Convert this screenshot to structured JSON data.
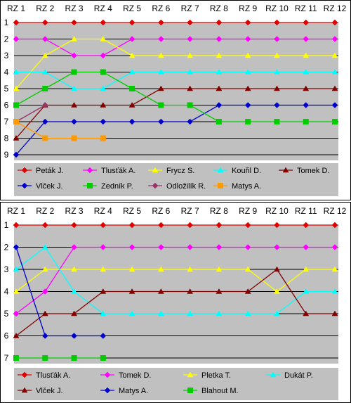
{
  "charts": [
    {
      "type": "line",
      "x": [
        "RZ 1",
        "RZ 2",
        "RZ 3",
        "RZ 4",
        "RZ 5",
        "RZ 6",
        "RZ 7",
        "RZ 8",
        "RZ 9",
        "RZ 10",
        "RZ 11",
        "RZ 12"
      ],
      "y_ticks": [
        "1",
        "2",
        "3",
        "4",
        "5",
        "6",
        "7",
        "8",
        "9"
      ],
      "ylim": [
        1,
        9
      ],
      "y_inverted": true,
      "grid": "horizontal",
      "legend_position": "bottom",
      "series": [
        {
          "name": "Peták J.",
          "color": "#e00000",
          "marker": "diamond",
          "values": [
            1,
            1,
            1,
            1,
            1,
            1,
            1,
            1,
            1,
            1,
            1,
            1
          ]
        },
        {
          "name": "Tlusťák A.",
          "color": "#ff00ff",
          "marker": "diamond",
          "values": [
            2,
            2,
            3,
            3,
            2,
            2,
            2,
            2,
            2,
            2,
            2,
            2
          ]
        },
        {
          "name": "Frycz S.",
          "color": "#ffff00",
          "marker": "triangle",
          "values": [
            5,
            3,
            2,
            2,
            3,
            3,
            3,
            3,
            3,
            3,
            3,
            3
          ]
        },
        {
          "name": "Kouřil D.",
          "color": "#00ffff",
          "marker": "triangle",
          "values": [
            4,
            4,
            5,
            5,
            4,
            4,
            4,
            4,
            4,
            4,
            4,
            4
          ]
        },
        {
          "name": "Tomek D.",
          "color": "#800000",
          "marker": "triangle",
          "values": [
            8,
            6,
            6,
            6,
            6,
            5,
            5,
            5,
            5,
            5,
            5,
            5
          ]
        },
        {
          "name": "Vlček J.",
          "color": "#0000cc",
          "marker": "diamond",
          "values": [
            9,
            7,
            7,
            7,
            7,
            7,
            7,
            6,
            6,
            6,
            6,
            6
          ]
        },
        {
          "name": "Zedník P.",
          "color": "#00cc00",
          "marker": "square",
          "values": [
            6,
            5,
            4,
            4,
            5,
            6,
            6,
            7,
            7,
            7,
            7,
            7
          ]
        },
        {
          "name": "Odložilík R.",
          "color": "#993366",
          "marker": "diamond",
          "values": [
            7,
            6,
            null,
            null,
            null,
            null,
            null,
            null,
            null,
            null,
            null,
            null
          ]
        },
        {
          "name": "Matys A.",
          "color": "#ff9900",
          "marker": "square",
          "values": [
            7,
            8,
            8,
            8,
            null,
            null,
            null,
            null,
            null,
            null,
            null,
            null
          ]
        }
      ]
    },
    {
      "type": "line",
      "x": [
        "RZ 1",
        "RZ 2",
        "RZ 3",
        "RZ 4",
        "RZ 5",
        "RZ 6",
        "RZ 7",
        "RZ 8",
        "RZ 9",
        "RZ 10",
        "RZ 11",
        "RZ 12"
      ],
      "y_ticks": [
        "1",
        "2",
        "3",
        "4",
        "5",
        "6",
        "7"
      ],
      "ylim": [
        1,
        7
      ],
      "y_inverted": true,
      "grid": "horizontal",
      "legend_position": "bottom",
      "series": [
        {
          "name": "Tlusťák A.",
          "color": "#e00000",
          "marker": "diamond",
          "values": [
            1,
            1,
            1,
            1,
            1,
            1,
            1,
            1,
            1,
            1,
            1,
            1
          ]
        },
        {
          "name": "Tomek D.",
          "color": "#ff00ff",
          "marker": "diamond",
          "values": [
            5,
            4,
            2,
            2,
            2,
            2,
            2,
            2,
            2,
            2,
            2,
            2
          ]
        },
        {
          "name": "Pletka T.",
          "color": "#ffff00",
          "marker": "triangle",
          "values": [
            4,
            3,
            3,
            3,
            3,
            3,
            3,
            3,
            3,
            4,
            3,
            3
          ]
        },
        {
          "name": "Dukát P.",
          "color": "#00ffff",
          "marker": "triangle",
          "values": [
            3,
            2,
            4,
            5,
            5,
            5,
            5,
            5,
            5,
            5,
            4,
            4
          ]
        },
        {
          "name": "Vlček J.",
          "color": "#800000",
          "marker": "triangle",
          "values": [
            6,
            5,
            5,
            4,
            4,
            4,
            4,
            4,
            4,
            3,
            5,
            5
          ]
        },
        {
          "name": "Matys A.",
          "color": "#0000cc",
          "marker": "diamond",
          "values": [
            2,
            6,
            6,
            6,
            null,
            null,
            null,
            null,
            null,
            null,
            null,
            null
          ]
        },
        {
          "name": "Blahout M.",
          "color": "#00cc00",
          "marker": "square",
          "values": [
            7,
            7,
            7,
            7,
            null,
            null,
            null,
            null,
            null,
            null,
            null,
            null
          ]
        }
      ]
    }
  ]
}
